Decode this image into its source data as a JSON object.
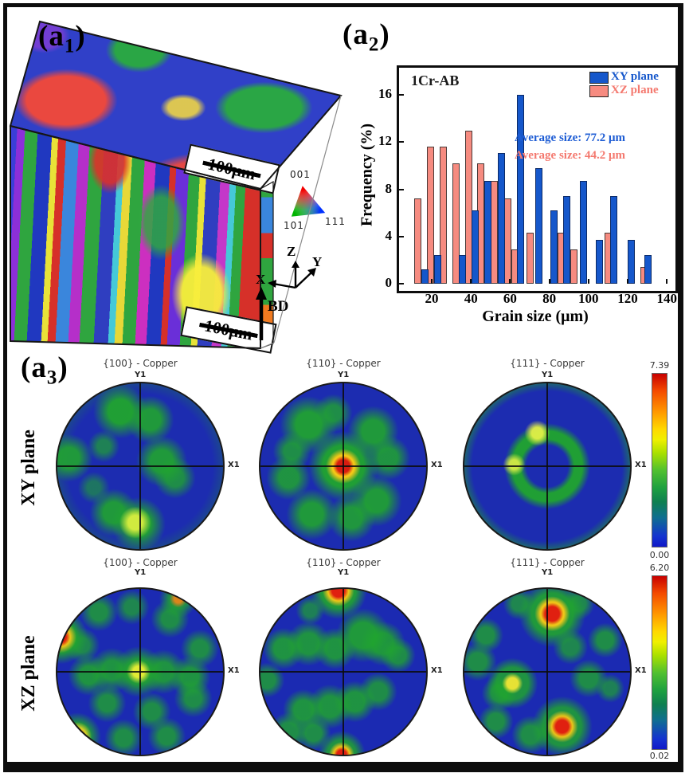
{
  "panel_a1": {
    "label": {
      "prefix": "(a",
      "sub": "1",
      "suffix": ")"
    },
    "scalebar_top": "100μm",
    "scalebar_bottom": "100μm",
    "ipf_key": {
      "c001": "001",
      "c101": "101",
      "c111": "111"
    },
    "axes": {
      "x": "X",
      "y": "Y",
      "z": "Z",
      "bd": "BD"
    }
  },
  "panel_a2": {
    "label": {
      "prefix": "(a",
      "sub": "2",
      "suffix": ")"
    }
  },
  "chart_data": {
    "type": "bar",
    "title": "1Cr-AB",
    "xlabel": "Grain size (μm)",
    "ylabel": "Frequency (%)",
    "xlim": [
      8,
      142
    ],
    "ylim": [
      0,
      18
    ],
    "xticks": [
      20,
      40,
      60,
      80,
      100,
      120,
      140
    ],
    "yticks": [
      0,
      4,
      8,
      12,
      16
    ],
    "grid": false,
    "legend_position": "top-right",
    "series": [
      {
        "name": "XY plane",
        "color": "#1557cb",
        "border": "#0c2a66",
        "average_label": "Average size: 77.2 μm",
        "text_color": "#1d5cd4",
        "points": [
          {
            "x": 16.5,
            "y": 1.2
          },
          {
            "x": 23,
            "y": 2.4
          },
          {
            "x": 35.5,
            "y": 2.4
          },
          {
            "x": 42,
            "y": 6.2
          },
          {
            "x": 48.5,
            "y": 8.7
          },
          {
            "x": 55.5,
            "y": 11.1
          },
          {
            "x": 65.5,
            "y": 16.0
          },
          {
            "x": 74.5,
            "y": 9.8
          },
          {
            "x": 82.5,
            "y": 6.2
          },
          {
            "x": 89,
            "y": 7.4
          },
          {
            "x": 97.5,
            "y": 8.7
          },
          {
            "x": 105.5,
            "y": 3.7
          },
          {
            "x": 113,
            "y": 7.4
          },
          {
            "x": 122,
            "y": 3.7
          },
          {
            "x": 130.5,
            "y": 2.4
          }
        ]
      },
      {
        "name": "XZ plane",
        "color": "#f68b80",
        "border": "#4a3a38",
        "average_label": "Average size: 44.2 μm",
        "text_color": "#f4796f",
        "points": [
          {
            "x": 13,
            "y": 7.2
          },
          {
            "x": 19.5,
            "y": 11.6
          },
          {
            "x": 26,
            "y": 11.6
          },
          {
            "x": 32.5,
            "y": 10.2
          },
          {
            "x": 39,
            "y": 13.0
          },
          {
            "x": 45,
            "y": 10.2
          },
          {
            "x": 52,
            "y": 8.7
          },
          {
            "x": 59,
            "y": 7.2
          },
          {
            "x": 62.5,
            "y": 2.9
          },
          {
            "x": 70,
            "y": 4.3
          },
          {
            "x": 86,
            "y": 4.3
          },
          {
            "x": 92.5,
            "y": 2.9
          },
          {
            "x": 110,
            "y": 4.3
          },
          {
            "x": 128.5,
            "y": 1.4
          }
        ]
      }
    ]
  },
  "panel_a3": {
    "label": {
      "prefix": "(a",
      "sub": "3",
      "suffix": ")"
    },
    "axis": {
      "x": "X1",
      "y": "Y1"
    },
    "rows": [
      {
        "row_label": "XY plane",
        "scale_max": "7.39",
        "scale_min": "0.00",
        "figures": [
          {
            "title": "{100} - Copper"
          },
          {
            "title": "{110} - Copper"
          },
          {
            "title": "{111} - Copper"
          }
        ]
      },
      {
        "row_label": "XZ plane",
        "scale_max": "6.20",
        "scale_min": "0.02",
        "figures": [
          {
            "title": "{100} - Copper"
          },
          {
            "title": "{110} - Copper"
          },
          {
            "title": "{111} - Copper"
          }
        ]
      }
    ]
  },
  "colors": {
    "xy_bar": "#1557cb",
    "xz_bar": "#f68b80",
    "pole_base_blue": "#1c2cb0",
    "pole_green": "#20a52e",
    "scale_red": "#c80000"
  }
}
